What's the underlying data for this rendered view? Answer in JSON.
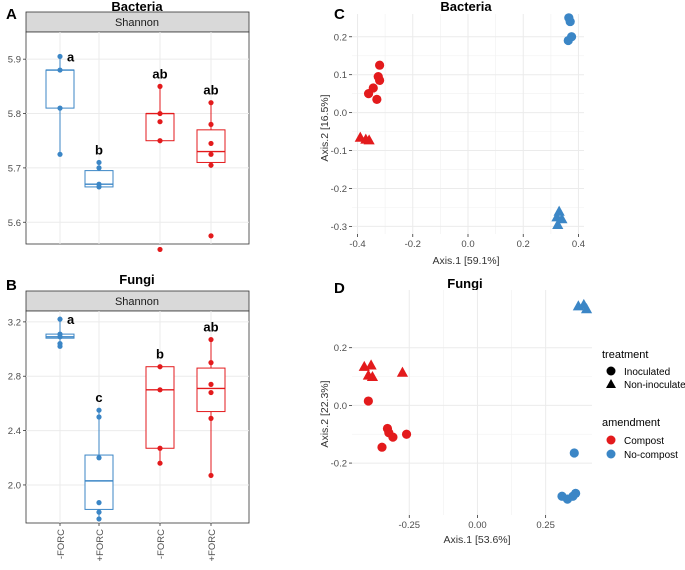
{
  "colors": {
    "compost": "#e31a1c",
    "nocompost": "#3b86c6",
    "grid": "#ebebeb",
    "strip_fill": "#d9d9d9"
  },
  "panels": {
    "A": {
      "letter": "A",
      "title": "Bacteria",
      "strip": "Shannon"
    },
    "B": {
      "letter": "B",
      "title": "Fungi",
      "strip": "Shannon"
    },
    "C": {
      "letter": "C",
      "title": "Bacteria"
    },
    "D": {
      "letter": "D",
      "title": "Fungi"
    }
  },
  "xcats": [
    "-FORC",
    "+FORC",
    "-FORC",
    "+FORC"
  ],
  "legend": {
    "treatment_title": "treatment",
    "treatment": [
      "Inoculated",
      "Non-inoculated"
    ],
    "amendment_title": "amendment",
    "amendment": [
      "Compost",
      "No-compost"
    ]
  },
  "chart_data": [
    {
      "id": "A",
      "type": "box",
      "title": "Bacteria",
      "facet": "Shannon",
      "ylim": [
        5.56,
        5.95
      ],
      "yticks": [
        5.6,
        5.7,
        5.8,
        5.9
      ],
      "yticklabels": [
        "5.6",
        "5.7",
        "5.8",
        "5.9"
      ],
      "boxes": [
        {
          "cat": 0,
          "color": "nocompost",
          "q1": 5.81,
          "med": 5.88,
          "q3": 5.88,
          "lo": 5.725,
          "hi": 5.905,
          "letter": "a",
          "points": [
            5.905,
            5.88,
            5.81,
            5.725
          ]
        },
        {
          "cat": 1,
          "color": "nocompost",
          "q1": 5.665,
          "med": 5.67,
          "q3": 5.695,
          "lo": 5.665,
          "hi": 5.71,
          "letter": "b",
          "points": [
            5.71,
            5.7,
            5.67,
            5.665
          ]
        },
        {
          "cat": 2,
          "color": "compost",
          "q1": 5.75,
          "med": 5.8,
          "q3": 5.8,
          "lo": 5.75,
          "hi": 5.85,
          "letter": "ab",
          "points": [
            5.85,
            5.8,
            5.785,
            5.75,
            5.55
          ]
        },
        {
          "cat": 3,
          "color": "compost",
          "q1": 5.71,
          "med": 5.73,
          "q3": 5.77,
          "lo": 5.7,
          "hi": 5.82,
          "letter": "ab",
          "points": [
            5.82,
            5.78,
            5.745,
            5.725,
            5.705,
            5.575
          ]
        }
      ]
    },
    {
      "id": "B",
      "type": "box",
      "title": "Fungi",
      "facet": "Shannon",
      "ylim": [
        1.72,
        3.28
      ],
      "yticks": [
        2.0,
        2.4,
        2.8,
        3.2
      ],
      "yticklabels": [
        "2.0",
        "2.4",
        "2.8",
        "3.2"
      ],
      "boxes": [
        {
          "cat": 0,
          "color": "nocompost",
          "q1": 3.08,
          "med": 3.09,
          "q3": 3.11,
          "lo": 3.02,
          "hi": 3.22,
          "letter": "a",
          "points": [
            3.22,
            3.11,
            3.09,
            3.04,
            3.02
          ]
        },
        {
          "cat": 1,
          "color": "nocompost",
          "q1": 1.82,
          "med": 2.03,
          "q3": 2.22,
          "lo": 1.75,
          "hi": 2.55,
          "letter": "c",
          "points": [
            2.55,
            2.5,
            2.2,
            1.87,
            1.8,
            1.75
          ]
        },
        {
          "cat": 2,
          "color": "compost",
          "q1": 2.27,
          "med": 2.7,
          "q3": 2.87,
          "lo": 2.16,
          "hi": 2.87,
          "letter": "b",
          "points": [
            2.87,
            2.7,
            2.27,
            2.16
          ]
        },
        {
          "cat": 3,
          "color": "compost",
          "q1": 2.54,
          "med": 2.71,
          "q3": 2.86,
          "lo": 2.07,
          "hi": 3.07,
          "letter": "ab",
          "points": [
            3.07,
            2.9,
            2.74,
            2.68,
            2.49,
            2.07
          ]
        }
      ]
    },
    {
      "id": "C",
      "type": "scatter",
      "title": "Bacteria",
      "xlabel": "Axis.1   [59.1%]",
      "ylabel": "Axis.2   [16.5%]",
      "xlim": [
        -0.42,
        0.42
      ],
      "ylim": [
        -0.32,
        0.26
      ],
      "xticks": [
        -0.4,
        -0.2,
        0.0,
        0.2,
        0.4
      ],
      "xticklabels": [
        "-0.4",
        "-0.2",
        "0.0",
        "0.2",
        "0.4"
      ],
      "yticks": [
        -0.3,
        -0.2,
        -0.1,
        0.0,
        0.1,
        0.2
      ],
      "yticklabels": [
        "-0.3",
        "-0.2",
        "-0.1",
        "0.0",
        "0.1",
        "0.2"
      ],
      "points": [
        {
          "x": -0.32,
          "y": 0.125,
          "c": "compost",
          "s": "circle"
        },
        {
          "x": -0.325,
          "y": 0.095,
          "c": "compost",
          "s": "circle"
        },
        {
          "x": -0.32,
          "y": 0.085,
          "c": "compost",
          "s": "circle"
        },
        {
          "x": -0.343,
          "y": 0.065,
          "c": "compost",
          "s": "circle"
        },
        {
          "x": -0.36,
          "y": 0.05,
          "c": "compost",
          "s": "circle"
        },
        {
          "x": -0.33,
          "y": 0.035,
          "c": "compost",
          "s": "circle"
        },
        {
          "x": -0.39,
          "y": -0.065,
          "c": "compost",
          "s": "triangle"
        },
        {
          "x": -0.37,
          "y": -0.07,
          "c": "compost",
          "s": "triangle"
        },
        {
          "x": -0.358,
          "y": -0.072,
          "c": "compost",
          "s": "triangle"
        },
        {
          "x": 0.365,
          "y": 0.25,
          "c": "nocompost",
          "s": "circle"
        },
        {
          "x": 0.37,
          "y": 0.24,
          "c": "nocompost",
          "s": "circle"
        },
        {
          "x": 0.375,
          "y": 0.2,
          "c": "nocompost",
          "s": "circle"
        },
        {
          "x": 0.363,
          "y": 0.19,
          "c": "nocompost",
          "s": "circle"
        },
        {
          "x": 0.33,
          "y": -0.26,
          "c": "nocompost",
          "s": "triangle"
        },
        {
          "x": 0.322,
          "y": -0.275,
          "c": "nocompost",
          "s": "triangle"
        },
        {
          "x": 0.34,
          "y": -0.28,
          "c": "nocompost",
          "s": "triangle"
        },
        {
          "x": 0.325,
          "y": -0.295,
          "c": "nocompost",
          "s": "triangle"
        }
      ]
    },
    {
      "id": "D",
      "type": "scatter",
      "title": "Fungi",
      "xlabel": "Axis.1   [53.6%]",
      "ylabel": "Axis.2   [22.3%]",
      "xlim": [
        -0.46,
        0.42
      ],
      "ylim": [
        -0.38,
        0.4
      ],
      "xticks": [
        -0.25,
        0.0,
        0.25
      ],
      "xticklabels": [
        "-0.25",
        "0.00",
        "0.25"
      ],
      "yticks": [
        -0.2,
        0.0,
        0.2
      ],
      "yticklabels": [
        "-0.2",
        "0.0",
        "0.2"
      ],
      "points": [
        {
          "x": -0.415,
          "y": 0.135,
          "c": "compost",
          "s": "triangle"
        },
        {
          "x": -0.39,
          "y": 0.14,
          "c": "compost",
          "s": "triangle"
        },
        {
          "x": -0.4,
          "y": 0.105,
          "c": "compost",
          "s": "triangle"
        },
        {
          "x": -0.385,
          "y": 0.1,
          "c": "compost",
          "s": "triangle"
        },
        {
          "x": -0.275,
          "y": 0.115,
          "c": "compost",
          "s": "triangle"
        },
        {
          "x": -0.4,
          "y": 0.015,
          "c": "compost",
          "s": "circle"
        },
        {
          "x": -0.33,
          "y": -0.08,
          "c": "compost",
          "s": "circle"
        },
        {
          "x": -0.325,
          "y": -0.095,
          "c": "compost",
          "s": "circle"
        },
        {
          "x": -0.31,
          "y": -0.11,
          "c": "compost",
          "s": "circle"
        },
        {
          "x": -0.26,
          "y": -0.1,
          "c": "compost",
          "s": "circle"
        },
        {
          "x": -0.35,
          "y": -0.145,
          "c": "compost",
          "s": "circle"
        },
        {
          "x": 0.37,
          "y": 0.345,
          "c": "nocompost",
          "s": "triangle"
        },
        {
          "x": 0.39,
          "y": 0.35,
          "c": "nocompost",
          "s": "triangle"
        },
        {
          "x": 0.4,
          "y": 0.335,
          "c": "nocompost",
          "s": "triangle"
        },
        {
          "x": 0.355,
          "y": -0.165,
          "c": "nocompost",
          "s": "circle"
        },
        {
          "x": 0.31,
          "y": -0.315,
          "c": "nocompost",
          "s": "circle"
        },
        {
          "x": 0.33,
          "y": -0.325,
          "c": "nocompost",
          "s": "circle"
        },
        {
          "x": 0.35,
          "y": -0.315,
          "c": "nocompost",
          "s": "circle"
        },
        {
          "x": 0.36,
          "y": -0.305,
          "c": "nocompost",
          "s": "circle"
        }
      ]
    }
  ]
}
